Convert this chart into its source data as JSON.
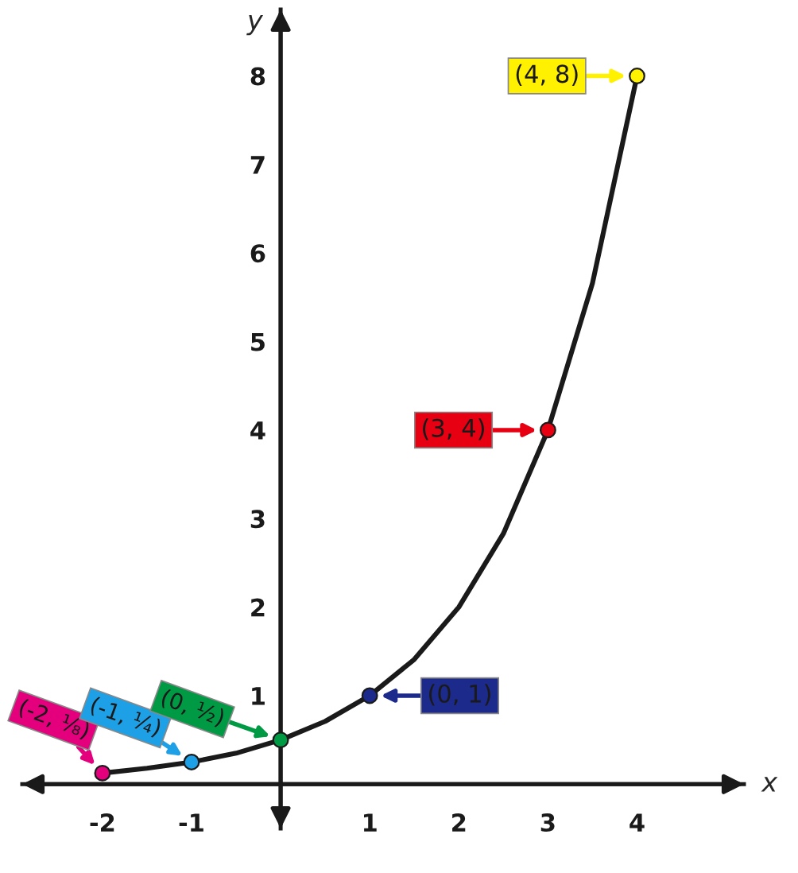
{
  "chart_data": {
    "type": "line",
    "xlabel": "x",
    "ylabel": "y",
    "xlim": [
      -2.9,
      5.2
    ],
    "ylim": [
      -0.5,
      8.75
    ],
    "xticks": [
      -2,
      -1,
      1,
      2,
      3,
      4
    ],
    "yticks": [
      1,
      2,
      3,
      4,
      5,
      6,
      7,
      8
    ],
    "grid": false,
    "legend": false,
    "series": [
      {
        "color": "#1a1a1a",
        "marker": "none",
        "line_style": "solid",
        "x": [
          -2,
          -1.5,
          -1,
          -0.5,
          0,
          0.5,
          1,
          1.5,
          2,
          2.5,
          3,
          3.5,
          4
        ],
        "values": [
          0.125,
          0.18,
          0.25,
          0.35,
          0.5,
          0.71,
          1,
          1.41,
          2,
          2.83,
          4,
          5.66,
          8
        ]
      },
      {
        "type": "scatter",
        "marker": "circle",
        "x": [
          -2,
          -1,
          0,
          1,
          3,
          4
        ],
        "values": [
          0.125,
          0.25,
          0.5,
          1,
          4,
          8
        ],
        "colors": [
          "#e4007c",
          "#1ea0e6",
          "#009a44",
          "#1c2a8c",
          "#e60012",
          "#fff100"
        ]
      }
    ],
    "annotations": [
      {
        "text": "(-2, ⅛)",
        "x": -2,
        "y": 0.125
      },
      {
        "text": "(-1, ¼)",
        "x": -1,
        "y": 0.25
      },
      {
        "text": "(0, ½)",
        "x": 0,
        "y": 0.5
      },
      {
        "text": "(0, 1)",
        "x": 1,
        "y": 1
      },
      {
        "text": "(3, 4)",
        "x": 3,
        "y": 4
      },
      {
        "text": "(4, 8)",
        "x": 4,
        "y": 8
      }
    ]
  }
}
